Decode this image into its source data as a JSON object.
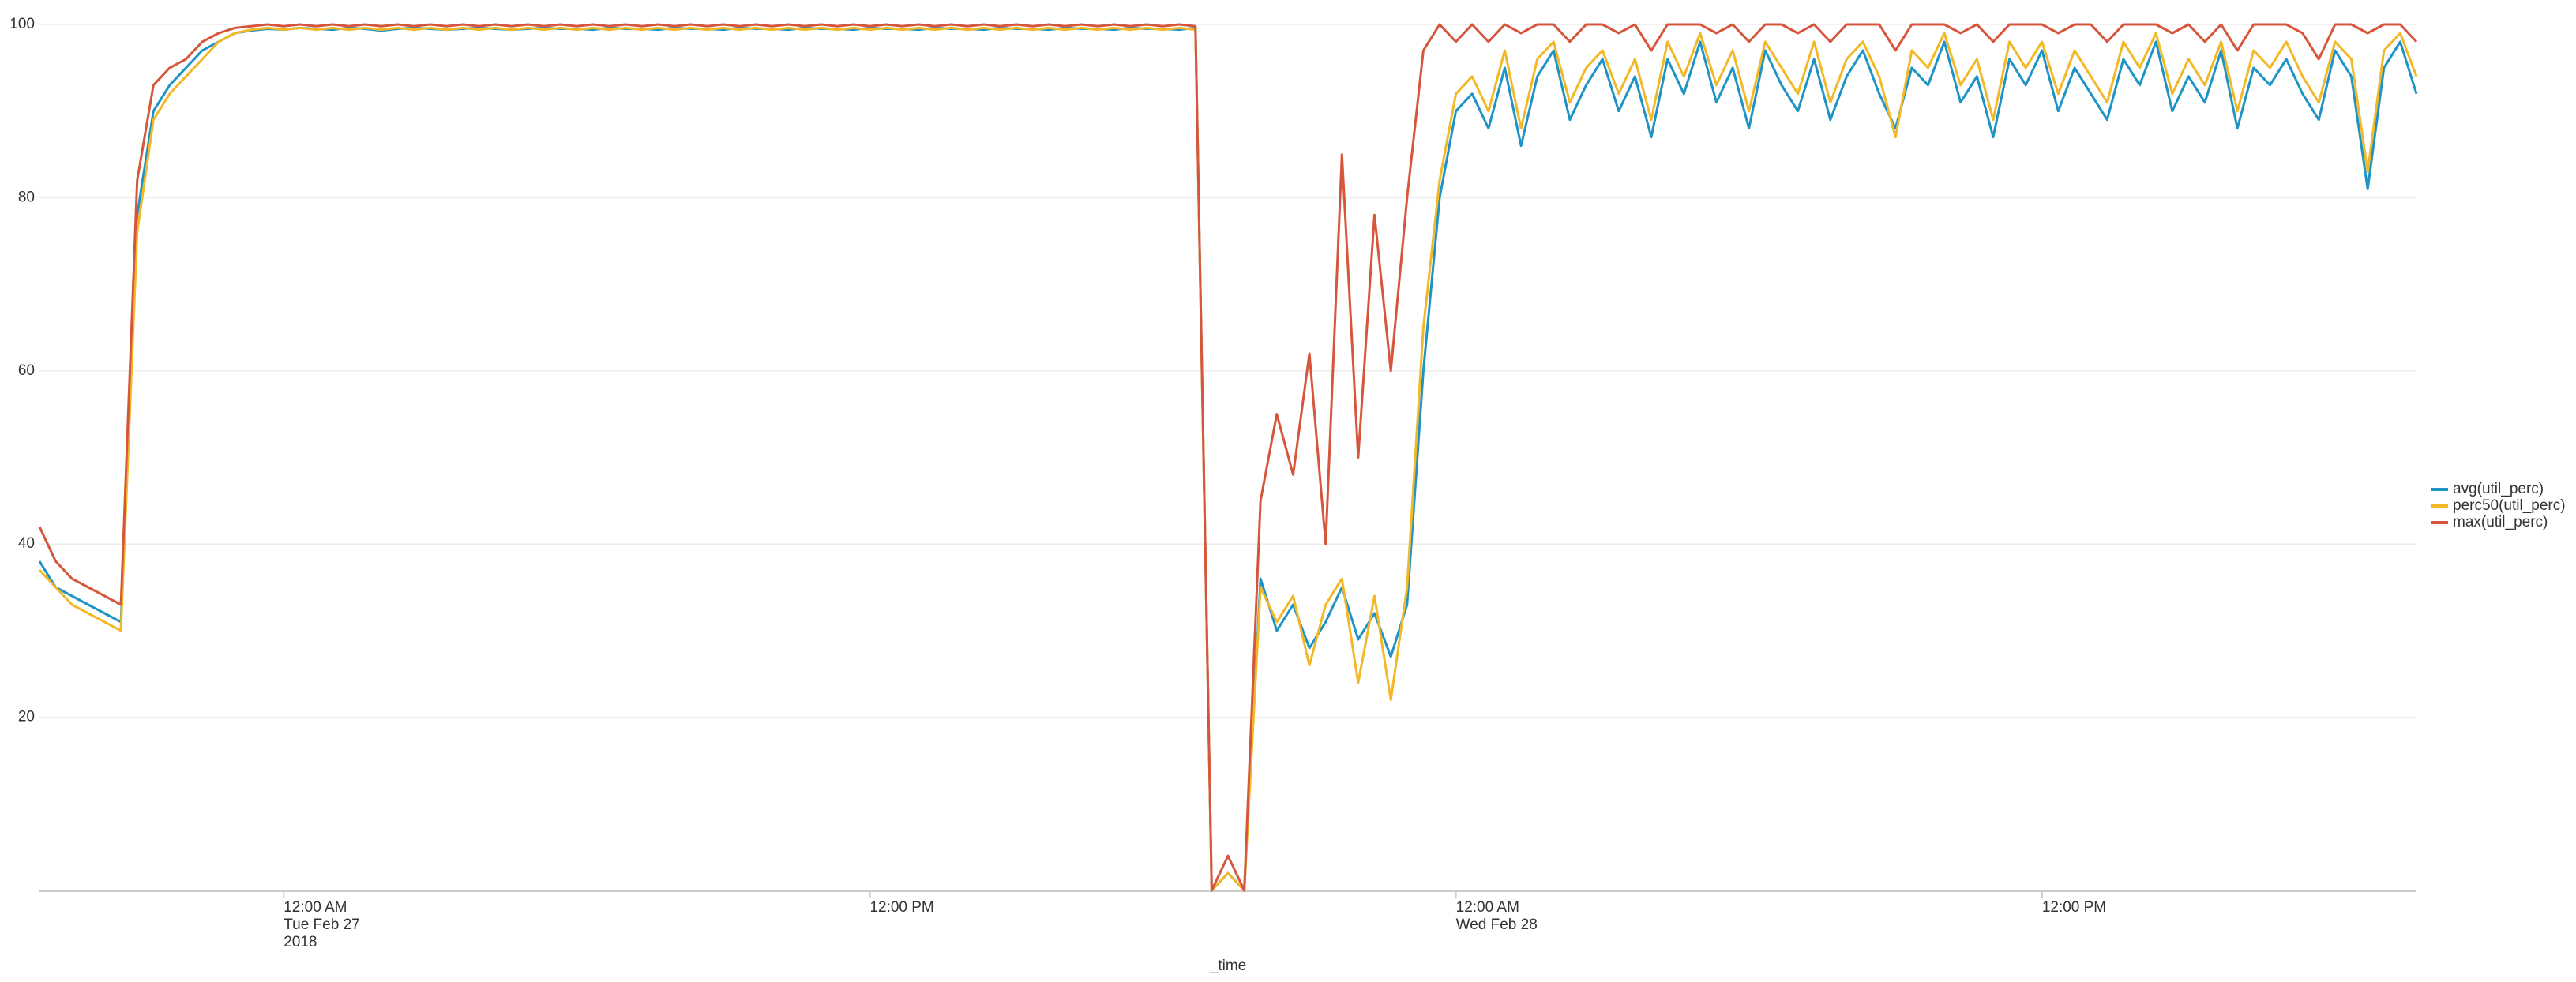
{
  "chart_data": {
    "type": "line",
    "x_label": "_time",
    "categories": [
      null,
      null,
      null,
      null,
      null,
      null,
      null,
      null,
      null,
      null,
      null,
      null,
      null,
      null,
      null,
      "12:00 AM\nTue Feb 27\n2018",
      null,
      null,
      null,
      null,
      null,
      null,
      null,
      null,
      null,
      null,
      null,
      null,
      null,
      null,
      null,
      null,
      null,
      null,
      null,
      null,
      null,
      null,
      null,
      null,
      null,
      null,
      null,
      null,
      null,
      null,
      null,
      null,
      null,
      null,
      null,
      "12:00 PM",
      null,
      null,
      null,
      null,
      null,
      null,
      null,
      null,
      null,
      null,
      null,
      null,
      null,
      null,
      null,
      null,
      null,
      null,
      null,
      null,
      null,
      null,
      null,
      null,
      null,
      null,
      null,
      null,
      null,
      null,
      null,
      null,
      null,
      null,
      null,
      "12:00 AM\nWed Feb 28",
      null,
      null,
      null,
      null,
      null,
      null,
      null,
      null,
      null,
      null,
      null,
      null,
      null,
      null,
      null,
      null,
      null,
      null,
      null,
      null,
      null,
      null,
      null,
      null,
      null,
      null,
      null,
      null,
      null,
      null,
      null,
      null,
      null,
      null,
      null,
      "12:00 PM",
      null,
      null,
      null,
      null,
      null,
      null,
      null,
      null,
      null,
      null,
      null,
      null,
      null,
      null,
      null,
      null,
      null,
      null,
      null,
      null,
      null,
      null,
      null
    ],
    "series": [
      {
        "name": "avg(util_perc)",
        "color": "#1e93c6",
        "values": [
          38,
          35,
          34,
          33,
          32,
          31,
          78,
          90,
          93,
          95,
          97,
          98,
          99,
          99.3,
          99.5,
          99.4,
          99.6,
          99.5,
          99.4,
          99.6,
          99.5,
          99.3,
          99.5,
          99.6,
          99.5,
          99.4,
          99.5,
          99.6,
          99.5,
          99.4,
          99.5,
          99.6,
          99.5,
          99.5,
          99.4,
          99.6,
          99.5,
          99.5,
          99.4,
          99.6,
          99.5,
          99.5,
          99.4,
          99.6,
          99.5,
          99.5,
          99.4,
          99.6,
          99.5,
          99.5,
          99.4,
          99.6,
          99.5,
          99.5,
          99.4,
          99.6,
          99.5,
          99.5,
          99.4,
          99.6,
          99.5,
          99.5,
          99.4,
          99.6,
          99.5,
          99.5,
          99.4,
          99.6,
          99.5,
          99.5,
          99.4,
          99.6,
          0,
          2,
          0,
          36,
          30,
          33,
          28,
          31,
          35,
          29,
          32,
          27,
          33,
          60,
          80,
          90,
          92,
          88,
          95,
          86,
          94,
          97,
          89,
          93,
          96,
          90,
          94,
          87,
          96,
          92,
          98,
          91,
          95,
          88,
          97,
          93,
          90,
          96,
          89,
          94,
          97,
          92,
          88,
          95,
          93,
          98,
          91,
          94,
          87,
          96,
          93,
          97,
          90,
          95,
          92,
          89,
          96,
          93,
          98,
          90,
          94,
          91,
          97,
          88,
          95,
          93,
          96,
          92,
          89,
          97,
          94,
          81,
          95,
          98,
          92
        ]
      },
      {
        "name": "perc50(util_perc)",
        "color": "#f2b827",
        "values": [
          37,
          35,
          33,
          32,
          31,
          30,
          76,
          89,
          92,
          94,
          96,
          98,
          99,
          99.4,
          99.6,
          99.4,
          99.6,
          99.4,
          99.6,
          99.4,
          99.6,
          99.4,
          99.6,
          99.4,
          99.6,
          99.4,
          99.6,
          99.4,
          99.6,
          99.4,
          99.6,
          99.4,
          99.6,
          99.4,
          99.6,
          99.4,
          99.6,
          99.4,
          99.6,
          99.4,
          99.6,
          99.4,
          99.6,
          99.4,
          99.6,
          99.4,
          99.6,
          99.4,
          99.6,
          99.4,
          99.6,
          99.4,
          99.6,
          99.4,
          99.6,
          99.4,
          99.6,
          99.4,
          99.6,
          99.4,
          99.6,
          99.4,
          99.6,
          99.4,
          99.6,
          99.4,
          99.6,
          99.4,
          99.6,
          99.4,
          99.6,
          99.4,
          0,
          2,
          0,
          35,
          31,
          34,
          26,
          33,
          36,
          24,
          34,
          22,
          35,
          65,
          82,
          92,
          94,
          90,
          97,
          88,
          96,
          98,
          91,
          95,
          97,
          92,
          96,
          89,
          98,
          94,
          99,
          93,
          97,
          90,
          98,
          95,
          92,
          98,
          91,
          96,
          98,
          94,
          87,
          97,
          95,
          99,
          93,
          96,
          89,
          98,
          95,
          98,
          92,
          97,
          94,
          91,
          98,
          95,
          99,
          92,
          96,
          93,
          98,
          90,
          97,
          95,
          98,
          94,
          91,
          98,
          96,
          83,
          97,
          99,
          94
        ]
      },
      {
        "name": "max(util_perc)",
        "color": "#d6563c",
        "values": [
          42,
          38,
          36,
          35,
          34,
          33,
          82,
          93,
          95,
          96,
          98,
          99,
          99.6,
          99.8,
          100,
          99.8,
          100,
          99.8,
          100,
          99.8,
          100,
          99.8,
          100,
          99.8,
          100,
          99.8,
          100,
          99.8,
          100,
          99.8,
          100,
          99.8,
          100,
          99.8,
          100,
          99.8,
          100,
          99.8,
          100,
          99.8,
          100,
          99.8,
          100,
          99.8,
          100,
          99.8,
          100,
          99.8,
          100,
          99.8,
          100,
          99.8,
          100,
          99.8,
          100,
          99.8,
          100,
          99.8,
          100,
          99.8,
          100,
          99.8,
          100,
          99.8,
          100,
          99.8,
          100,
          99.8,
          100,
          99.8,
          100,
          99.8,
          0,
          4,
          0,
          45,
          55,
          48,
          62,
          40,
          85,
          50,
          78,
          60,
          80,
          97,
          100,
          98,
          100,
          98,
          100,
          99,
          100,
          100,
          98,
          100,
          100,
          99,
          100,
          97,
          100,
          100,
          100,
          99,
          100,
          98,
          100,
          100,
          99,
          100,
          98,
          100,
          100,
          100,
          97,
          100,
          100,
          100,
          99,
          100,
          98,
          100,
          100,
          100,
          99,
          100,
          100,
          98,
          100,
          100,
          100,
          99,
          100,
          98,
          100,
          97,
          100,
          100,
          100,
          99,
          96,
          100,
          100,
          99,
          100,
          100,
          98
        ]
      }
    ],
    "ylim": [
      0,
      100
    ],
    "yticks": [
      20,
      40,
      60,
      80,
      100
    ],
    "grid": true,
    "legend": "right"
  }
}
